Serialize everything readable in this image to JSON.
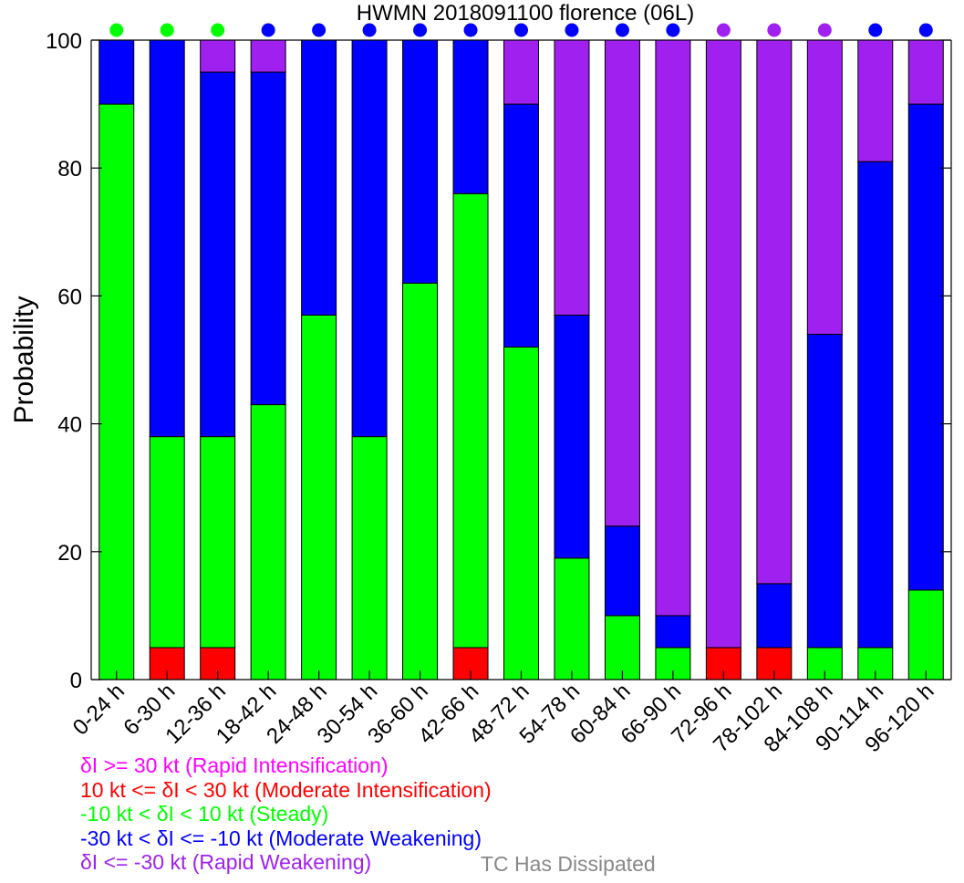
{
  "chart_data": {
    "type": "bar",
    "stacked": true,
    "title": "HWMN 2018091100 florence (06L)",
    "xlabel": "",
    "ylabel": "Probability",
    "ylim": [
      0,
      100
    ],
    "yticks": [
      0,
      20,
      40,
      60,
      80,
      100
    ],
    "grid": false,
    "categories": [
      "0-24 h",
      "6-30 h",
      "12-36 h",
      "18-42 h",
      "24-48 h",
      "30-54 h",
      "36-60 h",
      "42-66 h",
      "48-72 h",
      "54-78 h",
      "60-84 h",
      "66-90 h",
      "72-96 h",
      "78-102 h",
      "84-108 h",
      "90-114 h",
      "96-120 h"
    ],
    "series": [
      {
        "key": "ri",
        "color": "#ff00ff",
        "values": [
          0,
          0,
          0,
          0,
          0,
          0,
          0,
          0,
          0,
          0,
          0,
          0,
          0,
          0,
          0,
          0,
          0
        ]
      },
      {
        "key": "mi",
        "color": "#ff0000",
        "values": [
          0,
          5,
          5,
          0,
          0,
          0,
          0,
          5,
          0,
          0,
          0,
          0,
          5,
          5,
          0,
          0,
          0
        ]
      },
      {
        "key": "steady",
        "color": "#00ff00",
        "values": [
          90,
          33,
          33,
          43,
          57,
          38,
          62,
          71,
          52,
          19,
          10,
          5,
          0,
          0,
          5,
          5,
          14
        ]
      },
      {
        "key": "mw",
        "color": "#0000ff",
        "values": [
          10,
          62,
          57,
          52,
          43,
          62,
          38,
          24,
          38,
          38,
          14,
          5,
          0,
          10,
          49,
          76,
          76
        ]
      },
      {
        "key": "rw",
        "color": "#a020f0",
        "values": [
          0,
          0,
          5,
          5,
          0,
          0,
          0,
          0,
          10,
          43,
          76,
          90,
          95,
          85,
          46,
          19,
          10
        ]
      }
    ],
    "top_dots": [
      "#00ff00",
      "#00ff00",
      "#00ff00",
      "#0000ff",
      "#0000ff",
      "#0000ff",
      "#0000ff",
      "#0000ff",
      "#0000ff",
      "#0000ff",
      "#0000ff",
      "#0000ff",
      "#a020f0",
      "#a020f0",
      "#a020f0",
      "#0000ff",
      "#0000ff"
    ]
  },
  "legend": {
    "items": [
      {
        "text": "δI >= 30 kt (Rapid Intensification)",
        "color": "#ff00ff"
      },
      {
        "text": "10 kt <= δI < 30 kt (Moderate Intensification)",
        "color": "#ff0000"
      },
      {
        "text": "-10 kt < δI < 10 kt (Steady)",
        "color": "#00ff00"
      },
      {
        "text": "-30 kt < δI <= -10 kt (Moderate Weakening)",
        "color": "#0000ff"
      },
      {
        "text": "δI <= -30 kt (Rapid Weakening)",
        "color": "#a020f0"
      }
    ],
    "dissipated": {
      "text": "TC Has Dissipated",
      "color": "#888888"
    }
  }
}
